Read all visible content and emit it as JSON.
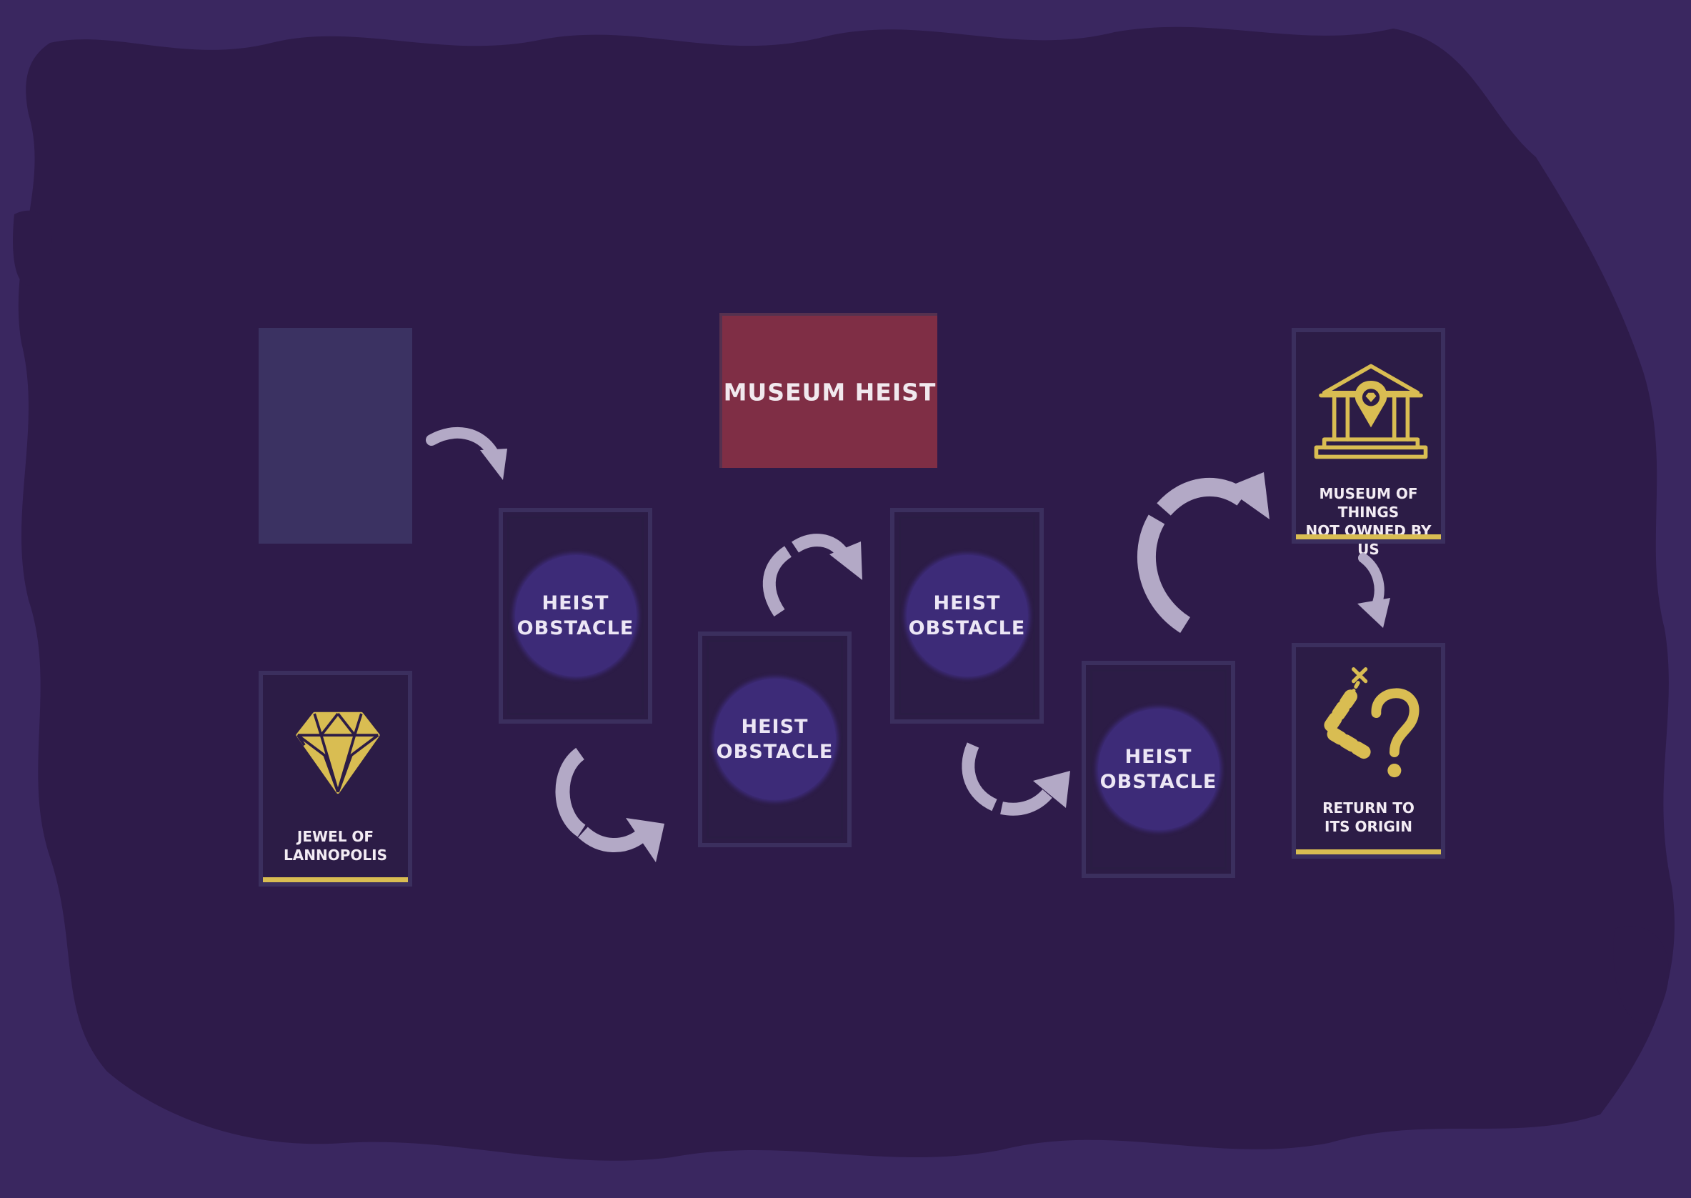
{
  "title_card": {
    "label": "MUSEUM HEIST"
  },
  "obstacle_cards": [
    {
      "label": "HEIST\nOBSTACLE"
    },
    {
      "label": "HEIST\nOBSTACLE"
    },
    {
      "label": "HEIST\nOBSTACLE"
    },
    {
      "label": "HEIST\nOBSTACLE"
    }
  ],
  "jewel_card": {
    "label": "JEWEL OF\nLANNOPOLIS",
    "icon": "gem-icon"
  },
  "museum_card": {
    "label": "MUSEUM OF THINGS\nNOT OWNED BY US",
    "icon": "museum-icon"
  },
  "return_card": {
    "label": "RETURN TO\nITS ORIGIN",
    "icon": "treasure-map-icon"
  },
  "colors": {
    "background": "#2e1b4a",
    "card": "#2c1c46",
    "title_card": "#7f2e45",
    "gold": "#d9bd52",
    "arrow": "#b3a9c6"
  }
}
